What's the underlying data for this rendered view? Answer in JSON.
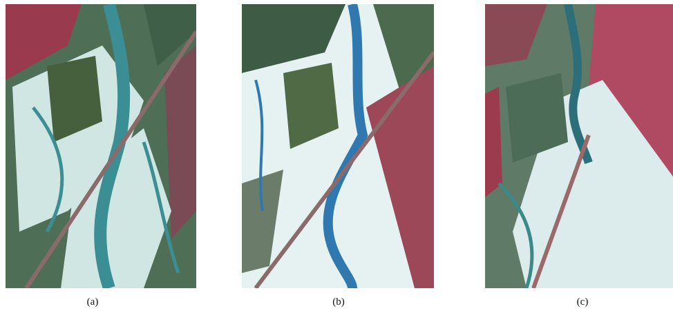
{
  "panels": [
    {
      "caption": "(a)"
    },
    {
      "caption": "(b)"
    },
    {
      "caption": "(c)"
    }
  ]
}
